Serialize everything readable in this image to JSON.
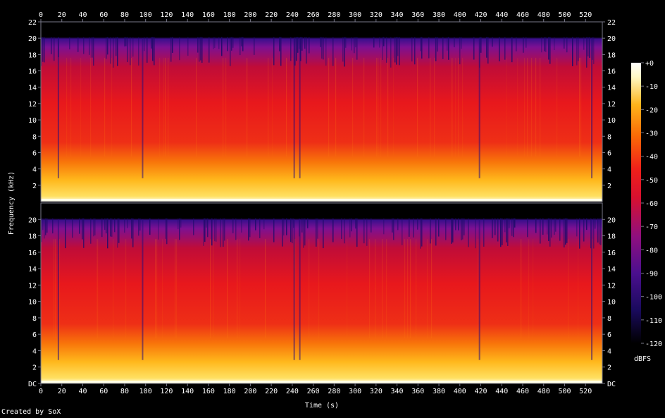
{
  "chart_data": {
    "type": "heatmap",
    "title": "",
    "xlabel": "Time (s)",
    "ylabel": "Frequency (kHz)",
    "x_ticks": [
      "0",
      "20",
      "40",
      "60",
      "80",
      "100",
      "120",
      "140",
      "160",
      "180",
      "200",
      "220",
      "240",
      "260",
      "280",
      "300",
      "320",
      "340",
      "360",
      "380",
      "400",
      "420",
      "440",
      "460",
      "480",
      "500",
      "520"
    ],
    "xlim": [
      0,
      536
    ],
    "ylim": [
      0,
      22
    ],
    "channels": [
      {
        "y_ticks": [
          "2",
          "4",
          "6",
          "8",
          "10",
          "12",
          "14",
          "16",
          "18",
          "20",
          "22"
        ]
      },
      {
        "y_ticks": [
          "DC",
          "2",
          "4",
          "6",
          "8",
          "10",
          "12",
          "14",
          "16",
          "18",
          "20"
        ]
      }
    ],
    "colorbar": {
      "label": "dBFS",
      "ticks": [
        "+0",
        "-10",
        "-20",
        "-30",
        "-40",
        "-50",
        "-60",
        "-70",
        "-80",
        "-90",
        "-100",
        "-110",
        "-120"
      ],
      "range": [
        -120,
        0
      ]
    },
    "colors": {
      "background": "#000000",
      "axis": "#777788",
      "text": "#ffffff",
      "colormap": [
        "#000000",
        "#1a0a5e",
        "#4b0f8f",
        "#8f0f7f",
        "#d8102f",
        "#f0201a",
        "#fa6a06",
        "#feb31a",
        "#fff9c6",
        "#ffffff"
      ]
    }
  },
  "footer": {
    "text": "Created by SoX"
  }
}
